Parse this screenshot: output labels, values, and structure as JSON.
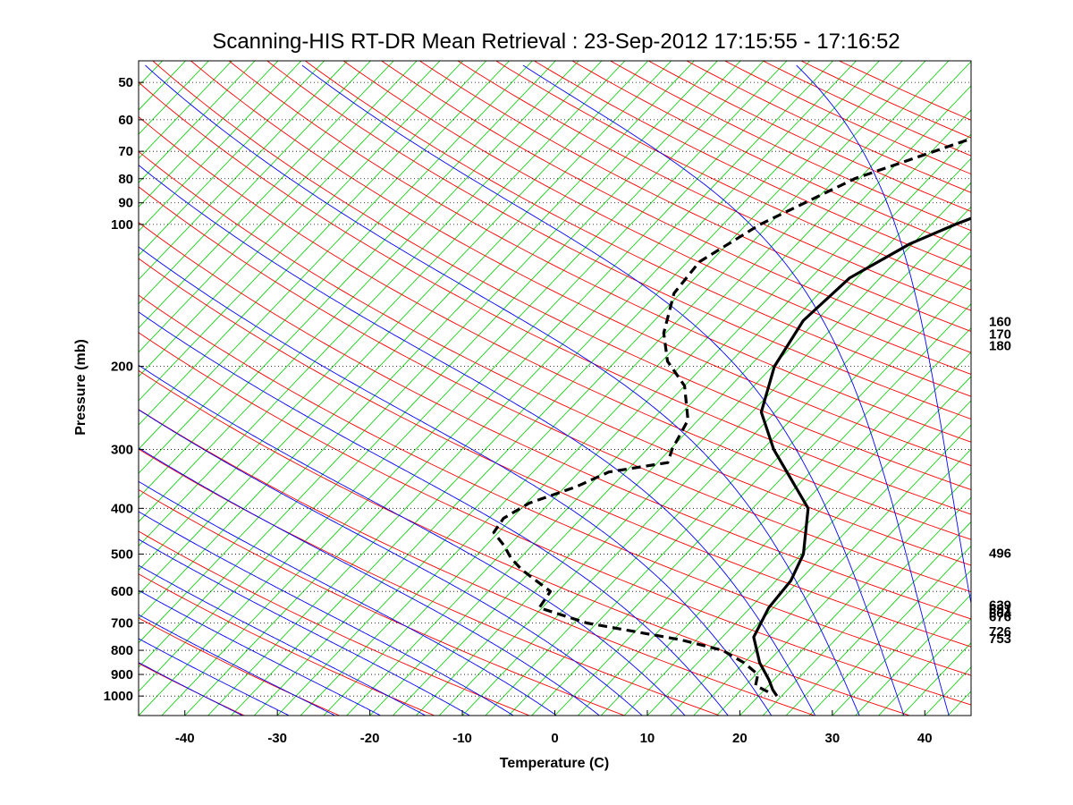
{
  "chart_data": {
    "type": "line",
    "subtype": "skew-t log-p sounding",
    "title": "Scanning-HIS RT-DR Mean Retrieval : 23-Sep-2012 17:15:55 - 17:16:52",
    "xlabel": "Temperature (C)",
    "ylabel": "Pressure (mb)",
    "xlim": [
      -45,
      45
    ],
    "ylim": [
      1100,
      45
    ],
    "xticks": [
      -40,
      -30,
      -20,
      -10,
      0,
      10,
      20,
      30,
      40
    ],
    "yticks": [
      50,
      60,
      70,
      80,
      90,
      100,
      200,
      300,
      400,
      500,
      600,
      700,
      800,
      900,
      1000
    ],
    "right_labels": [
      "160",
      "170",
      "180",
      "496",
      "639",
      "651",
      "664",
      "676",
      "726",
      "753"
    ],
    "right_label_pressures": [
      160,
      170,
      180,
      496,
      639,
      651,
      664,
      676,
      726,
      753
    ],
    "colors": {
      "dry_adiabat": "#ff0000",
      "moist_adiabat": "#0000ff",
      "isotherm": "#00cc00",
      "gridline": "#000000",
      "profile": "#000000"
    },
    "series": [
      {
        "name": "Temperature",
        "style": "solid",
        "points": [
          [
            1000,
            22.0
          ],
          [
            970,
            20.9
          ],
          [
            925,
            19.5
          ],
          [
            850,
            16.7
          ],
          [
            750,
            13.4
          ],
          [
            650,
            12.0
          ],
          [
            570,
            11.6
          ],
          [
            500,
            10.2
          ],
          [
            400,
            6.0
          ],
          [
            300,
            -3.8
          ],
          [
            250,
            -9.0
          ],
          [
            200,
            -12.3
          ],
          [
            160,
            -13.9
          ],
          [
            130,
            -13.3
          ],
          [
            110,
            -10.3
          ],
          [
            100,
            -7.4
          ],
          [
            80,
            0.7
          ],
          [
            65,
            9.1
          ],
          [
            55,
            16.0
          ],
          [
            45,
            26.3
          ]
        ]
      },
      {
        "name": "Dewpoint",
        "style": "dashed",
        "points": [
          [
            980,
            20.6
          ],
          [
            950,
            18.6
          ],
          [
            900,
            17.7
          ],
          [
            850,
            15.0
          ],
          [
            800,
            11.4
          ],
          [
            760,
            5.8
          ],
          [
            700,
            -6.1
          ],
          [
            650,
            -12.8
          ],
          [
            600,
            -13.3
          ],
          [
            540,
            -18.6
          ],
          [
            510,
            -21.0
          ],
          [
            480,
            -23.0
          ],
          [
            450,
            -25.5
          ],
          [
            420,
            -25.9
          ],
          [
            390,
            -24.7
          ],
          [
            360,
            -21.3
          ],
          [
            335,
            -19.3
          ],
          [
            320,
            -13.9
          ],
          [
            300,
            -14.8
          ],
          [
            260,
            -16.1
          ],
          [
            220,
            -20.0
          ],
          [
            195,
            -24.4
          ],
          [
            170,
            -27.7
          ],
          [
            140,
            -30.7
          ],
          [
            120,
            -31.2
          ],
          [
            100,
            -28.5
          ],
          [
            80,
            -23.0
          ],
          [
            65,
            -14.0
          ],
          [
            52,
            -5.3
          ],
          [
            45,
            1.6
          ]
        ]
      }
    ]
  }
}
